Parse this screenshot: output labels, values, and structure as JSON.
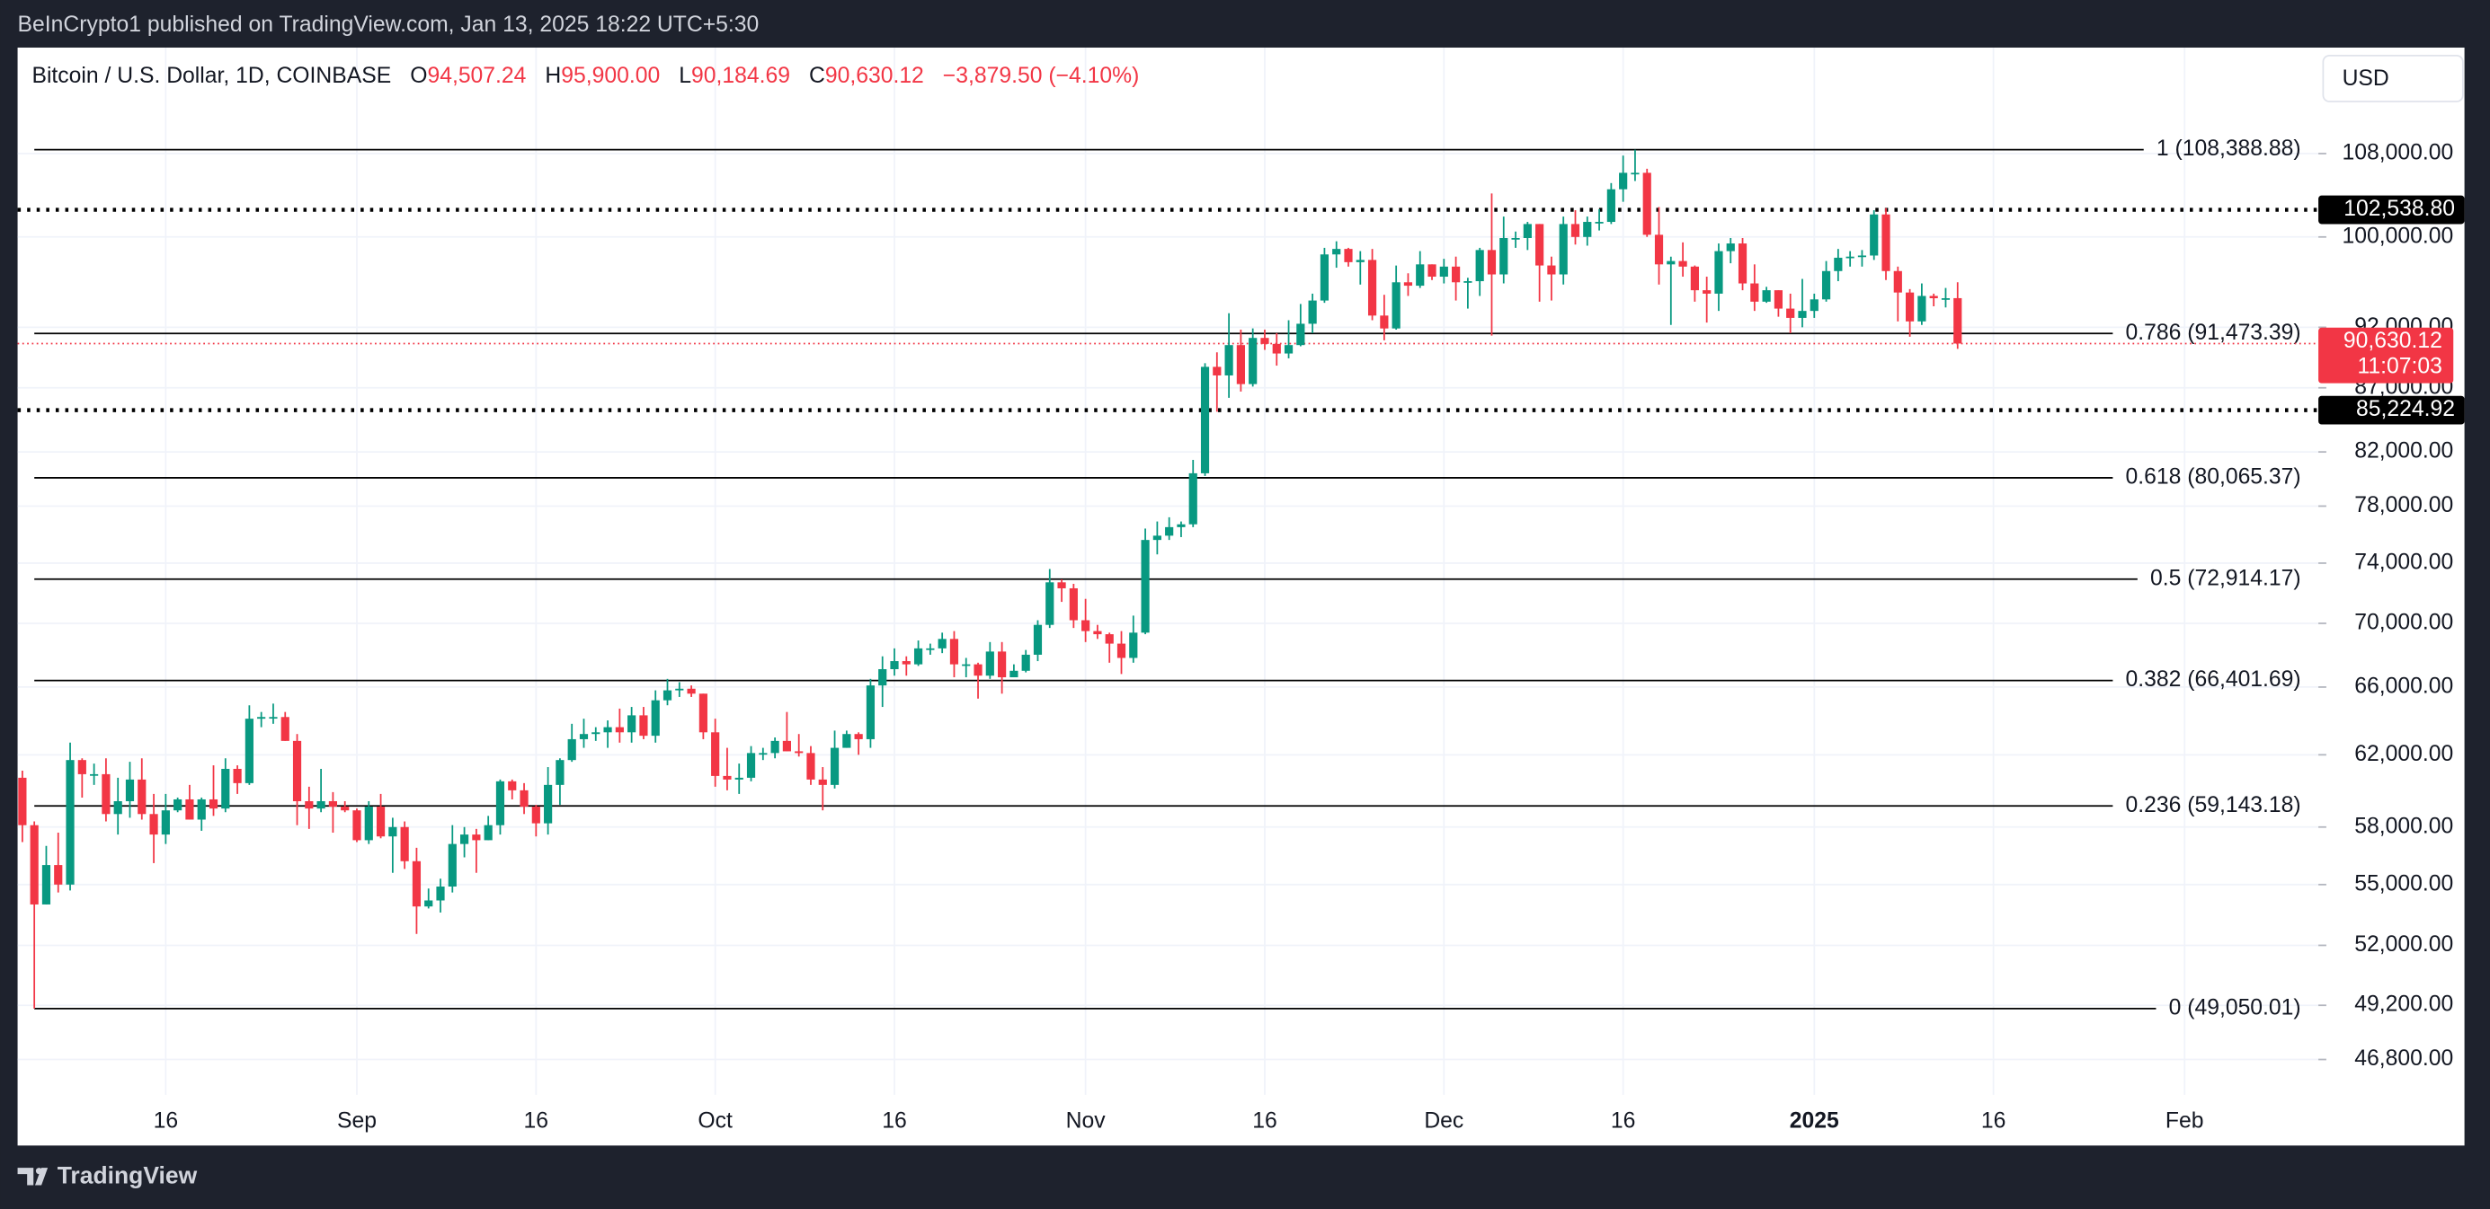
{
  "header": {
    "publisher": "BeInCrypto1 published on TradingView.com, Jan 13, 2025 18:22 UTC+5:30",
    "brand": "TradingView"
  },
  "chart_data": {
    "type": "candlestick",
    "title": "Bitcoin / U.S. Dollar, 1D, COINBASE",
    "legend": {
      "open_label": "O",
      "open": "94,507.24",
      "high_label": "H",
      "high": "95,900.00",
      "low_label": "L",
      "low": "90,184.69",
      "close_label": "C",
      "close": "90,630.12",
      "change": "−3,879.50 (−4.10%)"
    },
    "currency": "USD",
    "colors": {
      "up": "#089981",
      "down": "#f23645"
    },
    "log_scale": true,
    "grid": true,
    "ylim": [
      45300,
      119100
    ],
    "yticks": [
      {
        "value": 108000,
        "label": "108,000.00"
      },
      {
        "value": 100000,
        "label": "100,000.00"
      },
      {
        "value": 92000,
        "label": "92,000.00"
      },
      {
        "value": 87000,
        "label": "87,000.00"
      },
      {
        "value": 82000,
        "label": "82,000.00"
      },
      {
        "value": 78000,
        "label": "78,000.00"
      },
      {
        "value": 74000,
        "label": "74,000.00"
      },
      {
        "value": 70000,
        "label": "70,000.00"
      },
      {
        "value": 66000,
        "label": "66,000.00"
      },
      {
        "value": 62000,
        "label": "62,000.00"
      },
      {
        "value": 58000,
        "label": "58,000.00"
      },
      {
        "value": 55000,
        "label": "55,000.00"
      },
      {
        "value": 52000,
        "label": "52,000.00"
      },
      {
        "value": 49200,
        "label": "49,200.00"
      },
      {
        "value": 46800,
        "label": "46,800.00"
      }
    ],
    "xlim": [
      -0.4,
      192.2
    ],
    "xticks": [
      {
        "value": 12,
        "label": "16"
      },
      {
        "value": 28,
        "label": "Sep"
      },
      {
        "value": 43,
        "label": "16"
      },
      {
        "value": 58,
        "label": "Oct"
      },
      {
        "value": 73,
        "label": "16"
      },
      {
        "value": 89,
        "label": "Nov"
      },
      {
        "value": 104,
        "label": "16"
      },
      {
        "value": 119,
        "label": "Dec"
      },
      {
        "value": 134,
        "label": "16"
      },
      {
        "value": 150,
        "label": "2025",
        "bold": true
      },
      {
        "value": 165,
        "label": "16"
      },
      {
        "value": 181,
        "label": "Feb"
      }
    ],
    "fib_levels": [
      {
        "value": 108388.88,
        "label": "1 (108,388.88)"
      },
      {
        "value": 91473.39,
        "label": "0.786 (91,473.39)"
      },
      {
        "value": 80065.37,
        "label": "0.618 (80,065.37)"
      },
      {
        "value": 72914.17,
        "label": "0.5 (72,914.17)"
      },
      {
        "value": 66401.69,
        "label": "0.382 (66,401.69)"
      },
      {
        "value": 59143.18,
        "label": "0.236 (59,143.18)"
      },
      {
        "value": 49050.01,
        "label": "0 (49,050.01)"
      }
    ],
    "price_lines": [
      {
        "value": 102538.8,
        "label": "102,538.80"
      },
      {
        "value": 85224.92,
        "label": "85,224.92"
      }
    ],
    "last_price": {
      "value": 90630.12,
      "label": "90,630.12",
      "countdown": "11:07:03"
    },
    "ohlc": [
      [
        60700,
        61100,
        57200,
        58100
      ],
      [
        58100,
        58300,
        49050.01,
        54000
      ],
      [
        54000,
        57000,
        54000,
        56000
      ],
      [
        56000,
        57700,
        54600,
        55000
      ],
      [
        55000,
        62700,
        54700,
        61700
      ],
      [
        61700,
        61800,
        59600,
        60900
      ],
      [
        60900,
        61500,
        60300,
        60900
      ],
      [
        60900,
        61800,
        58300,
        58700
      ],
      [
        58700,
        60700,
        57600,
        59400
      ],
      [
        59400,
        61600,
        58500,
        60600
      ],
      [
        60600,
        61800,
        58400,
        58700
      ],
      [
        58700,
        59800,
        56100,
        57600
      ],
      [
        57600,
        59800,
        57100,
        58900
      ],
      [
        58900,
        59600,
        58800,
        59500
      ],
      [
        59500,
        60300,
        58400,
        58400
      ],
      [
        58400,
        59600,
        57800,
        59500
      ],
      [
        59500,
        61400,
        58600,
        59000
      ],
      [
        59000,
        61800,
        58800,
        61200
      ],
      [
        61200,
        61400,
        59800,
        60400
      ],
      [
        60400,
        64900,
        60300,
        64100
      ],
      [
        64100,
        64500,
        63600,
        64200
      ],
      [
        64200,
        65000,
        63800,
        64200
      ],
      [
        64200,
        64500,
        62800,
        62800
      ],
      [
        62800,
        63200,
        58100,
        59400
      ],
      [
        59400,
        60200,
        57900,
        59000
      ],
      [
        59000,
        61200,
        58800,
        59400
      ],
      [
        59400,
        59900,
        57700,
        59100
      ],
      [
        59100,
        59400,
        58800,
        58900
      ],
      [
        58900,
        59000,
        57200,
        57300
      ],
      [
        57300,
        59400,
        57100,
        59100
      ],
      [
        59100,
        59800,
        57400,
        57500
      ],
      [
        57500,
        58500,
        55600,
        58000
      ],
      [
        58000,
        58300,
        55800,
        56200
      ],
      [
        56200,
        56900,
        52550,
        53900
      ],
      [
        53900,
        54800,
        53800,
        54200
      ],
      [
        54200,
        55300,
        53600,
        54900
      ],
      [
        54900,
        58100,
        54600,
        57100
      ],
      [
        57100,
        58000,
        56400,
        57600
      ],
      [
        57600,
        57900,
        55600,
        57300
      ],
      [
        57300,
        58600,
        57300,
        58100
      ],
      [
        58100,
        60600,
        57600,
        60500
      ],
      [
        60500,
        60600,
        59500,
        60000
      ],
      [
        60000,
        60400,
        58700,
        59100
      ],
      [
        59100,
        59200,
        57500,
        58200
      ],
      [
        58200,
        61300,
        57600,
        60300
      ],
      [
        60300,
        61800,
        59200,
        61700
      ],
      [
        61700,
        63800,
        61600,
        62900
      ],
      [
        62900,
        64100,
        62400,
        63200
      ],
      [
        63200,
        63600,
        62800,
        63300
      ],
      [
        63300,
        64000,
        62400,
        63600
      ],
      [
        63600,
        64700,
        62700,
        63300
      ],
      [
        63300,
        64800,
        62700,
        64300
      ],
      [
        64300,
        64800,
        62900,
        63100
      ],
      [
        63100,
        65800,
        62700,
        65200
      ],
      [
        65200,
        66500,
        64900,
        65800
      ],
      [
        65800,
        66300,
        65400,
        65900
      ],
      [
        65900,
        66100,
        65400,
        65600
      ],
      [
        65600,
        65600,
        62900,
        63300
      ],
      [
        63300,
        64100,
        60200,
        60800
      ],
      [
        60800,
        62400,
        60000,
        60600
      ],
      [
        60600,
        61500,
        59800,
        60700
      ],
      [
        60700,
        62500,
        60500,
        62100
      ],
      [
        62100,
        62400,
        61700,
        62100
      ],
      [
        62100,
        63000,
        61800,
        62800
      ],
      [
        62800,
        64500,
        62200,
        62200
      ],
      [
        62200,
        63200,
        61900,
        62100
      ],
      [
        62100,
        62500,
        60300,
        60600
      ],
      [
        60600,
        61300,
        58900,
        60300
      ],
      [
        60300,
        63400,
        60100,
        62400
      ],
      [
        62400,
        63400,
        62400,
        63200
      ],
      [
        63200,
        63300,
        62000,
        62900
      ],
      [
        62900,
        66500,
        62400,
        66100
      ],
      [
        66100,
        67900,
        64800,
        67100
      ],
      [
        67100,
        68400,
        66700,
        67600
      ],
      [
        67600,
        67900,
        66700,
        67400
      ],
      [
        67400,
        68900,
        67300,
        68400
      ],
      [
        68400,
        68700,
        68000,
        68400
      ],
      [
        68400,
        69400,
        68100,
        69000
      ],
      [
        69000,
        69500,
        66600,
        67400
      ],
      [
        67400,
        67800,
        66600,
        67400
      ],
      [
        67400,
        67500,
        65300,
        66700
      ],
      [
        66700,
        68800,
        66500,
        68200
      ],
      [
        68200,
        68800,
        65600,
        66600
      ],
      [
        66600,
        67400,
        66600,
        67000
      ],
      [
        67000,
        68300,
        66900,
        68000
      ],
      [
        68000,
        70200,
        67600,
        69900
      ],
      [
        69900,
        73600,
        69700,
        72700
      ],
      [
        72700,
        72900,
        71400,
        72300
      ],
      [
        72300,
        72600,
        69700,
        70200
      ],
      [
        70200,
        71600,
        68800,
        69500
      ],
      [
        69500,
        69900,
        69000,
        69300
      ],
      [
        69300,
        69400,
        67500,
        68700
      ],
      [
        68700,
        69500,
        66800,
        67800
      ],
      [
        67800,
        70500,
        67500,
        69400
      ],
      [
        69400,
        76400,
        69300,
        75600
      ],
      [
        75600,
        76900,
        74600,
        75900
      ],
      [
        75900,
        77200,
        75600,
        76500
      ],
      [
        76500,
        76900,
        75800,
        76700
      ],
      [
        76700,
        81400,
        76500,
        80400
      ],
      [
        80400,
        89000,
        80200,
        88700
      ],
      [
        88700,
        89900,
        85100,
        88000
      ],
      [
        88000,
        93200,
        86200,
        90500
      ],
      [
        90500,
        91800,
        86700,
        87300
      ],
      [
        87300,
        91900,
        87100,
        91100
      ],
      [
        91100,
        91800,
        90100,
        90600
      ],
      [
        90600,
        91500,
        88800,
        89800
      ],
      [
        89800,
        92600,
        89400,
        90500
      ],
      [
        90500,
        94000,
        90400,
        92300
      ],
      [
        92300,
        94900,
        91500,
        94300
      ],
      [
        94300,
        99000,
        94100,
        98400
      ],
      [
        98400,
        99600,
        97200,
        98900
      ],
      [
        98900,
        99000,
        97300,
        97700
      ],
      [
        97700,
        98700,
        95700,
        97900
      ],
      [
        97900,
        98900,
        92600,
        93000
      ],
      [
        93000,
        94800,
        90900,
        91900
      ],
      [
        91900,
        97400,
        91800,
        95900
      ],
      [
        95900,
        96700,
        94700,
        95600
      ],
      [
        95600,
        98700,
        95400,
        97500
      ],
      [
        97500,
        97500,
        96100,
        96400
      ],
      [
        96400,
        98000,
        95800,
        97300
      ],
      [
        97300,
        98200,
        94300,
        95900
      ],
      [
        95900,
        96300,
        93600,
        96000
      ],
      [
        96000,
        99000,
        94700,
        98800
      ],
      [
        98800,
        104100,
        91300,
        96600
      ],
      [
        96600,
        101900,
        95800,
        99900
      ],
      [
        99900,
        100500,
        99000,
        99900
      ],
      [
        99900,
        101400,
        98800,
        101200
      ],
      [
        101200,
        101200,
        94200,
        97400
      ],
      [
        97400,
        98200,
        94300,
        96600
      ],
      [
        96600,
        101900,
        95700,
        101200
      ],
      [
        101200,
        102500,
        99300,
        100000
      ],
      [
        100000,
        101900,
        99200,
        101400
      ],
      [
        101400,
        102600,
        100600,
        101400
      ],
      [
        101400,
        105100,
        101200,
        104500
      ],
      [
        104500,
        107800,
        103300,
        106100
      ],
      [
        106100,
        108388.88,
        105300,
        106100
      ],
      [
        106100,
        106500,
        100000,
        100200
      ],
      [
        100200,
        102800,
        95700,
        97500
      ],
      [
        97500,
        98200,
        92200,
        97800
      ],
      [
        97800,
        99500,
        96400,
        97300
      ],
      [
        97300,
        97400,
        94200,
        95200
      ],
      [
        95200,
        96400,
        92400,
        94900
      ],
      [
        94900,
        99400,
        93400,
        98700
      ],
      [
        98700,
        99900,
        97600,
        99400
      ],
      [
        99400,
        99900,
        95200,
        95800
      ],
      [
        95800,
        97500,
        93400,
        94200
      ],
      [
        94200,
        95500,
        94100,
        95200
      ],
      [
        95200,
        95200,
        92900,
        93600
      ],
      [
        93600,
        94900,
        91500,
        92800
      ],
      [
        92800,
        96200,
        92000,
        93400
      ],
      [
        93400,
        94900,
        92800,
        94400
      ],
      [
        94400,
        97800,
        94200,
        96900
      ],
      [
        96900,
        98900,
        96000,
        98100
      ],
      [
        98100,
        98700,
        97300,
        98200
      ],
      [
        98200,
        98800,
        97300,
        98300
      ],
      [
        98300,
        102500,
        97900,
        102100
      ],
      [
        102100,
        102700,
        96100,
        96900
      ],
      [
        96900,
        97300,
        92500,
        95000
      ],
      [
        95000,
        95300,
        91200,
        92500
      ],
      [
        92500,
        95800,
        92200,
        94700
      ],
      [
        94700,
        94900,
        93800,
        94500
      ],
      [
        94500,
        95400,
        93700,
        94500
      ],
      [
        94507.24,
        95900,
        90184.69,
        90630.12
      ]
    ]
  }
}
